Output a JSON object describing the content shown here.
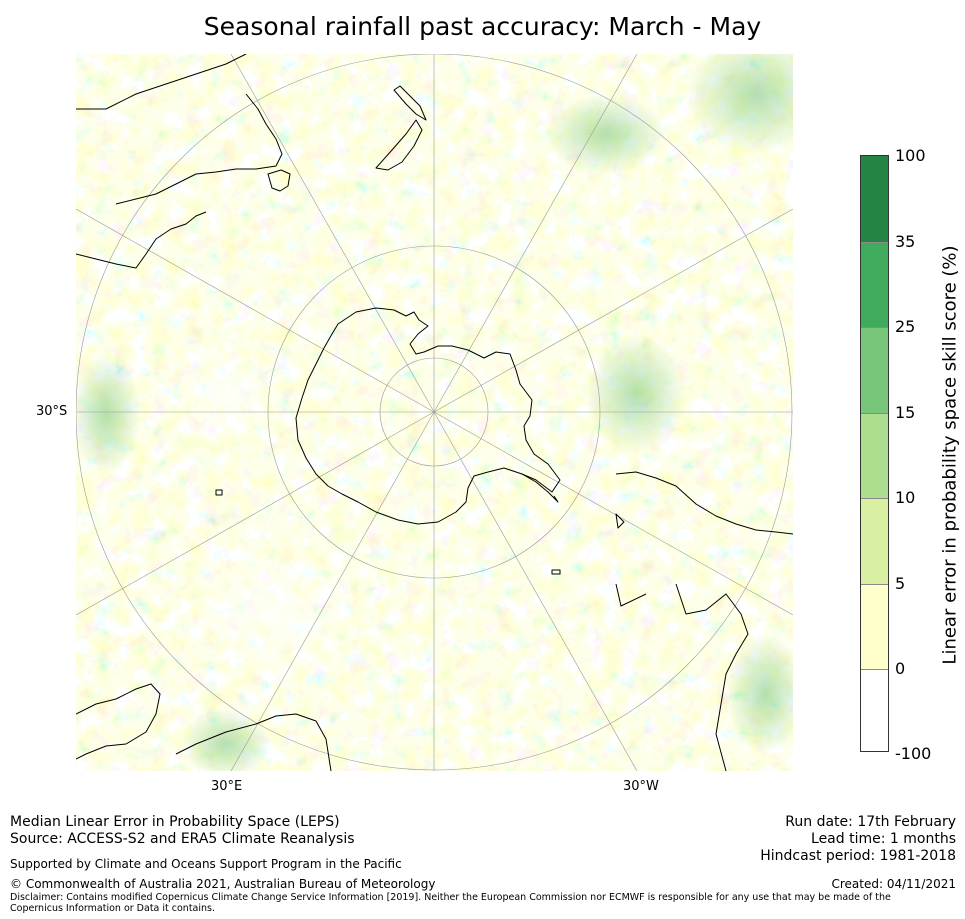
{
  "title": "Seasonal rainfall past accuracy: March - May",
  "map": {
    "projection": "south-polar-stereographic",
    "lat_labels": [
      "30°S"
    ],
    "lon_labels": [
      "30°E",
      "30°W"
    ],
    "colors": {
      "water": "#ffffff",
      "coast": "#000000",
      "grid": "#9a9a9a"
    }
  },
  "colorbar": {
    "label": "Linear error in probability space skill score (%)",
    "ticks": [
      "100",
      "35",
      "25",
      "15",
      "10",
      "5",
      "0",
      "-100"
    ],
    "bins": [
      {
        "range": "35 to 100",
        "color": "#238443"
      },
      {
        "range": "25 to 35",
        "color": "#41ab5d"
      },
      {
        "range": "15 to 25",
        "color": "#78c679"
      },
      {
        "range": "10 to 15",
        "color": "#addd8e"
      },
      {
        "range": "5 to 10",
        "color": "#d9f0a3"
      },
      {
        "range": "0 to 5",
        "color": "#ffffcc"
      },
      {
        "range": "-100 to 0",
        "color": "#ffffff"
      }
    ]
  },
  "footer": {
    "method": "Median Linear Error in Probability Space (LEPS)",
    "source": "Source: ACCESS-S2 and ERA5 Climate Reanalysis",
    "support": "Supported by Climate and Oceans Support Program in the Pacific",
    "copyright": "© Commonwealth of Australia 2021, Australian Bureau of Meteorology",
    "disclaimer": "Disclaimer: Contains modified Copernicus Climate Change Service Information [2019]. Neither the European Commission nor ECMWF is responsible for any use that may be made of the Copernicus Information or Data it contains.",
    "run_date": "Run date: 17th February",
    "lead_time": "Lead time: 1 months",
    "hindcast": "Hindcast period: 1981-2018",
    "created": "Created: 04/11/2021"
  }
}
